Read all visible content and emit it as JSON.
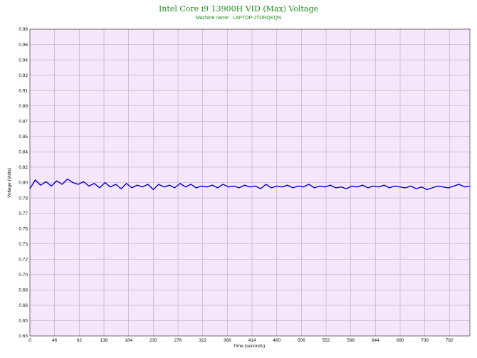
{
  "chart_data": {
    "type": "line",
    "title": "Intel Core i9 13900H VID (Max) Voltage",
    "subtitle": "Machine name : LAPTOP-JTDRQKQN",
    "xlabel": "Time (seconds)",
    "ylabel": "Voltage (Volts)",
    "xlim": [
      0,
      820
    ],
    "ylim": [
      0.63,
      0.98
    ],
    "x_ticks": [
      "0",
      "46",
      "92",
      "138",
      "184",
      "230",
      "276",
      "322",
      "368",
      "414",
      "460",
      "506",
      "552",
      "598",
      "644",
      "690",
      "736",
      "782"
    ],
    "y_ticks": [
      "0.98",
      "0.96",
      "0.94",
      "0.92",
      "0.91",
      "0.89",
      "0.87",
      "0.85",
      "0.84",
      "0.82",
      "0.80",
      "0.78",
      "0.77",
      "0.75",
      "0.73",
      "0.72",
      "0.70",
      "0.68",
      "0.66",
      "0.65",
      "0.63"
    ],
    "grid": true,
    "background_color": "#f5e6fb",
    "grid_color": "#c0a8c8",
    "series_color": "#0000cc",
    "title_color": "#1f8a1f",
    "series": [
      {
        "x": [
          0,
          10,
          20,
          30,
          40,
          50,
          60,
          70,
          80,
          90,
          100,
          110,
          120,
          130,
          140,
          150,
          160,
          170,
          180,
          190,
          200,
          210,
          220,
          230,
          240,
          250,
          260,
          270,
          280,
          290,
          300,
          310,
          320,
          330,
          340,
          350,
          360,
          370,
          380,
          390,
          400,
          410,
          420,
          430,
          440,
          450,
          460,
          470,
          480,
          490,
          500,
          510,
          520,
          530,
          540,
          550,
          560,
          570,
          580,
          590,
          600,
          610,
          620,
          630,
          640,
          650,
          660,
          670,
          680,
          690,
          700,
          710,
          720,
          730,
          740,
          750,
          760,
          770,
          780,
          790,
          800,
          810,
          820
        ],
        "values": [
          0.798,
          0.808,
          0.802,
          0.806,
          0.801,
          0.807,
          0.803,
          0.809,
          0.805,
          0.803,
          0.806,
          0.801,
          0.804,
          0.799,
          0.805,
          0.8,
          0.803,
          0.798,
          0.804,
          0.799,
          0.802,
          0.8,
          0.803,
          0.797,
          0.803,
          0.8,
          0.802,
          0.799,
          0.804,
          0.8,
          0.803,
          0.799,
          0.801,
          0.8,
          0.802,
          0.799,
          0.803,
          0.8,
          0.801,
          0.799,
          0.802,
          0.8,
          0.801,
          0.798,
          0.803,
          0.799,
          0.801,
          0.8,
          0.802,
          0.799,
          0.801,
          0.8,
          0.803,
          0.799,
          0.801,
          0.8,
          0.802,
          0.799,
          0.8,
          0.798,
          0.801,
          0.8,
          0.802,
          0.799,
          0.801,
          0.8,
          0.802,
          0.799,
          0.801,
          0.8,
          0.799,
          0.801,
          0.798,
          0.8,
          0.797,
          0.799,
          0.801,
          0.8,
          0.799,
          0.801,
          0.803,
          0.8,
          0.801
        ]
      }
    ]
  }
}
